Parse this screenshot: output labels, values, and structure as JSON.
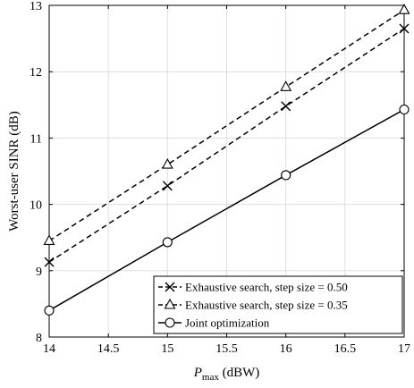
{
  "chart_data": {
    "type": "line",
    "title": "",
    "xlabel": {
      "main": "P",
      "sub": "max",
      "unit": " (dBW)"
    },
    "ylabel": "Worst-user SINR (dB)",
    "xlim": [
      14,
      17
    ],
    "ylim": [
      8,
      13
    ],
    "x_ticks": [
      "14",
      "14.5",
      "15",
      "15.5",
      "16",
      "16.5",
      "17"
    ],
    "y_ticks": [
      "8",
      "9",
      "10",
      "11",
      "12",
      "13"
    ],
    "grid": true,
    "legend_position": "bottom-right",
    "x": [
      14,
      15,
      16,
      17
    ],
    "series": [
      {
        "name": "Exhaustive search, step size = 0.50",
        "marker": "x",
        "linestyle": "dashed",
        "color": "#000000",
        "values": [
          9.13,
          10.28,
          11.48,
          12.65
        ]
      },
      {
        "name": "Exhaustive search, step size = 0.35",
        "marker": "triangle",
        "linestyle": "dashed",
        "color": "#000000",
        "values": [
          9.45,
          10.6,
          11.77,
          12.93
        ]
      },
      {
        "name": "Joint optimization",
        "marker": "circle",
        "linestyle": "solid",
        "color": "#000000",
        "values": [
          8.4,
          9.43,
          10.44,
          11.43
        ]
      }
    ]
  }
}
